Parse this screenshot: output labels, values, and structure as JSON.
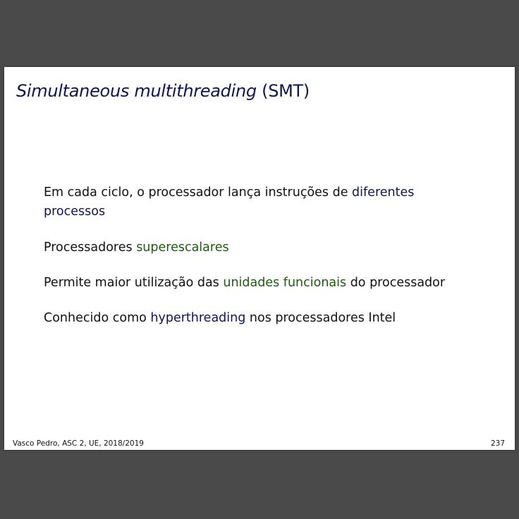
{
  "slide": {
    "title_emph": "Simultaneous multithreading",
    "title_rest": " (SMT)",
    "items": [
      {
        "text_before": "Em cada ciclo, o processador lança instruções de ",
        "highlight": "diferentes processos",
        "text_after": "",
        "highlight_color": "#0f1550"
      },
      {
        "text_before": "Processadores ",
        "highlight": "superescalares",
        "text_after": "",
        "highlight_color": "#1f5a10"
      },
      {
        "text_before": "Permite maior utilização das ",
        "highlight": "unidades funcionais",
        "text_after": " do processador",
        "highlight_color": "#1f5a10"
      },
      {
        "text_before": "Conhecido como ",
        "highlight": "hyperthreading",
        "text_after": " nos processadores Intel",
        "highlight_color": "#0f1550"
      }
    ],
    "footer": {
      "author_info": "Vasco Pedro, ASC 2, UE, 2018/2019",
      "page_number": "237"
    }
  }
}
